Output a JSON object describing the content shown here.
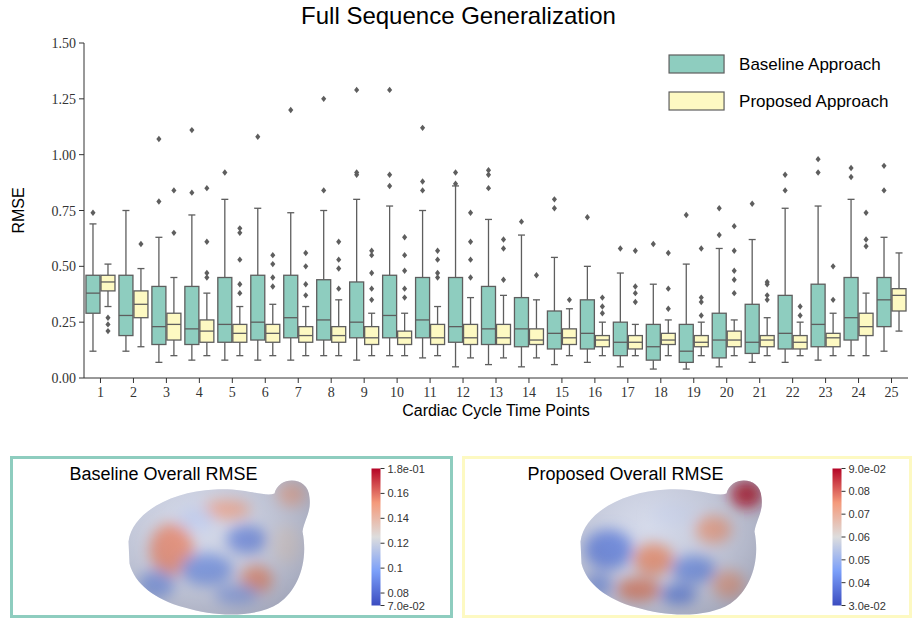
{
  "chart_data": [
    {
      "type": "box",
      "title": "Full Sequence Generalization",
      "x_label": "Cardiac Cycle Time Points",
      "y_label": "RMSE",
      "categories": [
        "1",
        "2",
        "3",
        "4",
        "5",
        "6",
        "7",
        "8",
        "9",
        "10",
        "11",
        "12",
        "13",
        "14",
        "15",
        "16",
        "17",
        "18",
        "19",
        "20",
        "21",
        "22",
        "23",
        "24",
        "25"
      ],
      "ylim": [
        0,
        1.5
      ],
      "yticks": [
        {
          "value": 0,
          "label": "0.00"
        },
        {
          "value": 0.25,
          "label": "0.25"
        },
        {
          "value": 0.5,
          "label": "0.50"
        },
        {
          "value": 0.75,
          "label": "0.75"
        },
        {
          "value": 1,
          "label": "1.00"
        },
        {
          "value": 1.25,
          "label": "1.25"
        },
        {
          "value": 1.5,
          "label": "1.50"
        }
      ],
      "grid": false,
      "legend": "top-right",
      "series": [
        {
          "name": "Baseline Approach",
          "color": "#8ecdbf",
          "marker": "diamond",
          "min": [
            0.12,
            0.12,
            0.07,
            0.08,
            0.08,
            0.08,
            0.08,
            0.1,
            0.08,
            0.1,
            0.09,
            0.05,
            0.06,
            0.05,
            0.06,
            0.07,
            0.05,
            0.04,
            0.04,
            0.05,
            0.07,
            0.07,
            0.08,
            0.1,
            0.12
          ],
          "q1": [
            0.29,
            0.19,
            0.15,
            0.15,
            0.16,
            0.17,
            0.18,
            0.17,
            0.18,
            0.18,
            0.18,
            0.16,
            0.15,
            0.14,
            0.13,
            0.13,
            0.1,
            0.08,
            0.07,
            0.09,
            0.11,
            0.13,
            0.14,
            0.17,
            0.23
          ],
          "median": [
            0.38,
            0.28,
            0.23,
            0.22,
            0.24,
            0.25,
            0.27,
            0.26,
            0.25,
            0.28,
            0.26,
            0.23,
            0.22,
            0.22,
            0.2,
            0.2,
            0.16,
            0.14,
            0.12,
            0.17,
            0.16,
            0.2,
            0.24,
            0.27,
            0.35
          ],
          "q3": [
            0.46,
            0.46,
            0.41,
            0.41,
            0.45,
            0.46,
            0.46,
            0.44,
            0.43,
            0.46,
            0.45,
            0.45,
            0.41,
            0.36,
            0.3,
            0.35,
            0.25,
            0.24,
            0.24,
            0.29,
            0.33,
            0.37,
            0.42,
            0.45,
            0.45
          ],
          "max": [
            0.69,
            0.75,
            0.63,
            0.73,
            0.8,
            0.76,
            0.74,
            0.75,
            0.8,
            0.77,
            0.75,
            0.86,
            0.71,
            0.64,
            0.54,
            0.5,
            0.47,
            0.42,
            0.51,
            0.58,
            0.62,
            0.76,
            0.77,
            0.8,
            0.63
          ],
          "outliers": [
            [
              0.74
            ],
            [],
            [
              0.79,
              1.07
            ],
            [
              0.83,
              1.11
            ],
            [
              0.92
            ],
            [
              1.08
            ],
            [
              1.2
            ],
            [
              0.84,
              1.25
            ],
            [
              0.91,
              0.92,
              1.29
            ],
            [
              0.86,
              0.91,
              1.29
            ],
            [
              0.84,
              0.88,
              1.12
            ],
            [
              0.87,
              0.92
            ],
            [
              0.85,
              0.91,
              0.93
            ],
            [
              0.7
            ],
            [
              0.76,
              0.8
            ],
            [
              0.72
            ],
            [
              0.58
            ],
            [
              0.6
            ],
            [
              0.73
            ],
            [
              0.64,
              0.76
            ],
            [
              0.78
            ],
            [
              0.84,
              0.91
            ],
            [
              0.92,
              0.98
            ],
            [
              0.9,
              0.94
            ],
            [
              0.84,
              0.95
            ]
          ]
        },
        {
          "name": "Proposed Approach",
          "color": "#fdf9c2",
          "marker": "diamond",
          "min": [
            0.32,
            0.14,
            0.1,
            0.1,
            0.1,
            0.1,
            0.1,
            0.1,
            0.1,
            0.1,
            0.1,
            0.09,
            0.09,
            0.09,
            0.1,
            0.1,
            0.1,
            0.1,
            0.1,
            0.1,
            0.1,
            0.1,
            0.1,
            0.1,
            0.21
          ],
          "q1": [
            0.39,
            0.27,
            0.17,
            0.16,
            0.16,
            0.16,
            0.16,
            0.16,
            0.15,
            0.15,
            0.15,
            0.15,
            0.15,
            0.15,
            0.15,
            0.14,
            0.13,
            0.15,
            0.14,
            0.14,
            0.14,
            0.13,
            0.14,
            0.19,
            0.3
          ],
          "median": [
            0.43,
            0.33,
            0.24,
            0.21,
            0.2,
            0.2,
            0.19,
            0.19,
            0.18,
            0.18,
            0.18,
            0.18,
            0.18,
            0.17,
            0.18,
            0.17,
            0.16,
            0.17,
            0.16,
            0.17,
            0.17,
            0.16,
            0.18,
            0.23,
            0.37
          ],
          "q3": [
            0.46,
            0.39,
            0.29,
            0.26,
            0.24,
            0.24,
            0.23,
            0.23,
            0.23,
            0.21,
            0.24,
            0.24,
            0.24,
            0.22,
            0.22,
            0.19,
            0.19,
            0.2,
            0.19,
            0.21,
            0.19,
            0.19,
            0.2,
            0.29,
            0.4
          ],
          "max": [
            0.51,
            0.49,
            0.45,
            0.38,
            0.32,
            0.33,
            0.32,
            0.35,
            0.29,
            0.29,
            0.32,
            0.36,
            0.37,
            0.35,
            0.31,
            0.25,
            0.24,
            0.26,
            0.25,
            0.26,
            0.27,
            0.25,
            0.29,
            0.38,
            0.56
          ],
          "outliers": [
            [
              0.27,
              0.24,
              0.21
            ],
            [
              0.6
            ],
            [
              0.65,
              0.84
            ],
            [
              0.45,
              0.47,
              0.61,
              0.85
            ],
            [
              0.38,
              0.42,
              0.53,
              0.65,
              0.67
            ],
            [
              0.41,
              0.45,
              0.51,
              0.55
            ],
            [
              0.37,
              0.42,
              0.5,
              0.56
            ],
            [
              0.4,
              0.49,
              0.53,
              0.61
            ],
            [
              0.35,
              0.4,
              0.47,
              0.55,
              0.57
            ],
            [
              0.36,
              0.4,
              0.48,
              0.55,
              0.63
            ],
            [
              0.45,
              0.47,
              0.53,
              0.57
            ],
            [
              0.45,
              0.53,
              0.61,
              0.74
            ],
            [
              0.44,
              0.58,
              0.62
            ],
            [
              0.46
            ],
            [
              0.35
            ],
            [
              0.29,
              0.32,
              0.36
            ],
            [
              0.34,
              0.38,
              0.41,
              0.57
            ],
            [
              0.31,
              0.4,
              0.56
            ],
            [
              0.28,
              0.34,
              0.36,
              0.58
            ],
            [
              0.38,
              0.44,
              0.48,
              0.57,
              0.68
            ],
            [
              0.35,
              0.37,
              0.42,
              0.43
            ],
            [
              0.28,
              0.32
            ],
            [
              0.35,
              0.5
            ],
            [
              0.59,
              0.62,
              0.74
            ],
            []
          ]
        }
      ]
    },
    {
      "type": "surface",
      "title": "Baseline Overall RMSE",
      "color": "#8ecdbf",
      "colorbar_range": [
        0.07,
        0.18
      ],
      "colorbar_ticks": [
        {
          "value": 0.18,
          "label": "1.8e-01"
        },
        0.16,
        0.14,
        0.12,
        0.1,
        0.08,
        {
          "value": 0.07,
          "label": "7.0e-02"
        }
      ]
    },
    {
      "type": "surface",
      "title": "Proposed Overall RMSE",
      "color": "#fdf9c2",
      "colorbar_range": [
        0.03,
        0.09
      ],
      "colorbar_ticks": [
        {
          "value": 0.09,
          "label": "9.0e-02"
        },
        0.08,
        0.07,
        0.06,
        0.05,
        0.04,
        {
          "value": 0.03,
          "label": "3.0e-02"
        }
      ]
    }
  ]
}
